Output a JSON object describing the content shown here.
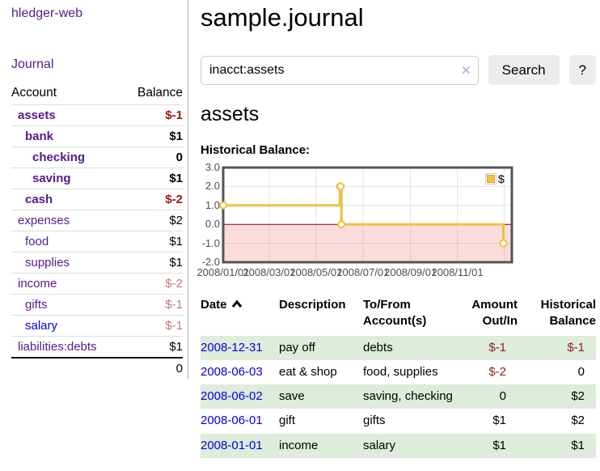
{
  "app": {
    "brand": "hledger-web",
    "nav": [
      {
        "label": "Journal"
      }
    ]
  },
  "sidebar": {
    "column_headers": {
      "account": "Account",
      "balance": "Balance"
    },
    "accounts": [
      {
        "name": "assets",
        "depth": 0,
        "balance": "$-1",
        "bold": true,
        "negative": true
      },
      {
        "name": "bank",
        "depth": 1,
        "balance": "$1",
        "bold": true,
        "negative": false
      },
      {
        "name": "checking",
        "depth": 2,
        "balance": "0",
        "bold": true,
        "negative": false
      },
      {
        "name": "saving",
        "depth": 2,
        "balance": "$1",
        "bold": true,
        "negative": false
      },
      {
        "name": "cash",
        "depth": 1,
        "balance": "$-2",
        "bold": true,
        "negative": true
      },
      {
        "name": "expenses",
        "depth": 0,
        "balance": "$2",
        "bold": false,
        "negative": false
      },
      {
        "name": "food",
        "depth": 1,
        "balance": "$1",
        "bold": false,
        "negative": false
      },
      {
        "name": "supplies",
        "depth": 1,
        "balance": "$1",
        "bold": false,
        "negative": false
      },
      {
        "name": "income",
        "depth": 0,
        "balance": "$-2",
        "bold": false,
        "negative": true
      },
      {
        "name": "gifts",
        "depth": 1,
        "balance": "$-1",
        "bold": false,
        "negative": true
      },
      {
        "name": "salary",
        "depth": 1,
        "balance": "$-1",
        "bold": false,
        "negative": true,
        "unvisited": true
      },
      {
        "name": "liabilities:debts",
        "depth": 0,
        "balance": "$1",
        "bold": false,
        "negative": false
      }
    ],
    "total": "0"
  },
  "header": {
    "title": "sample.journal"
  },
  "search": {
    "value": "inacct:assets",
    "clear_glyph": "✕",
    "button_label": "Search",
    "help_label": "?"
  },
  "account_page": {
    "heading": "assets",
    "chart_title": "Historical Balance:"
  },
  "chart_data": {
    "type": "line",
    "steps": true,
    "title": "Historical Balance",
    "series": [
      {
        "name": "$",
        "color": "#edc240",
        "points": [
          {
            "date": "2008-01-01",
            "value": 1
          },
          {
            "date": "2008-06-01",
            "value": 2
          },
          {
            "date": "2008-06-02",
            "value": 2
          },
          {
            "date": "2008-06-03",
            "value": 0
          },
          {
            "date": "2008-12-31",
            "value": -1
          }
        ]
      }
    ],
    "ylim": [
      -2,
      3
    ],
    "yticks": [
      {
        "label": "3.0",
        "value": 3
      },
      {
        "label": "2.0",
        "value": 2
      },
      {
        "label": "1.0",
        "value": 1
      },
      {
        "label": "0.0",
        "value": 0
      },
      {
        "label": "-1.0",
        "value": -1
      },
      {
        "label": "-2.0",
        "value": -2
      }
    ],
    "xlim": [
      "2008-01-01",
      "2009-01-11"
    ],
    "xticks": [
      {
        "label": "2008/01/01",
        "date": "2008-01-01"
      },
      {
        "label": "2008/03/01",
        "date": "2008-03-01"
      },
      {
        "label": "2008/05/01",
        "date": "2008-05-01"
      },
      {
        "label": "2008/07/01",
        "date": "2008-07-01"
      },
      {
        "label": "2008/09/01",
        "date": "2008-09-01"
      },
      {
        "label": "2008/11/01",
        "date": "2008-11-01"
      },
      {
        "label": "",
        "date": "2009-01-01"
      }
    ],
    "grid": true,
    "legend_position": "top-right",
    "colors": {
      "below_zero_fill": "#fadcdc",
      "zero_line": "#8b0000",
      "plot_border": "#545454",
      "gridline": "rgba(80,80,80,0.16)"
    }
  },
  "register": {
    "headers": [
      {
        "label": "Date",
        "sort": "asc"
      },
      {
        "label": "Description"
      },
      {
        "label": "To/From Account(s)"
      },
      {
        "label": "Amount Out/In",
        "align": "right"
      },
      {
        "label": "Historical Balance",
        "align": "right"
      }
    ],
    "rows": [
      {
        "date": "2008-12-31",
        "description": "pay off",
        "accounts": "debts",
        "amount": "$-1",
        "amount_negative": true,
        "balance": "$-1",
        "balance_negative": true
      },
      {
        "date": "2008-06-03",
        "description": "eat & shop",
        "accounts": "food, supplies",
        "amount": "$-2",
        "amount_negative": true,
        "balance": "0",
        "balance_negative": false
      },
      {
        "date": "2008-06-02",
        "description": "save",
        "accounts": "saving, checking",
        "amount": "0",
        "amount_negative": false,
        "balance": "$2",
        "balance_negative": false
      },
      {
        "date": "2008-06-01",
        "description": "gift",
        "accounts": "gifts",
        "amount": "$1",
        "amount_negative": false,
        "balance": "$2",
        "balance_negative": false
      },
      {
        "date": "2008-01-01",
        "description": "income",
        "accounts": "salary",
        "amount": "$1",
        "amount_negative": false,
        "balance": "$1",
        "balance_negative": false
      }
    ]
  }
}
